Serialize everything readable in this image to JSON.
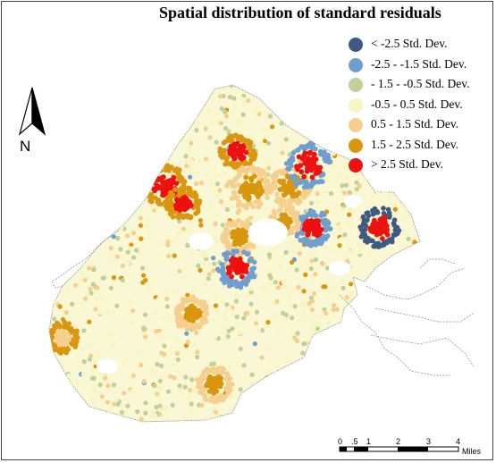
{
  "map": {
    "title": "Spatial distribution of standard residuals",
    "north_label": "N",
    "legend": [
      {
        "label": "< -2.5 Std. Dev.",
        "color": "#3e5a80"
      },
      {
        "label": "-2.5 - -1.5 Std. Dev.",
        "color": "#6f9fcf"
      },
      {
        "label": "- 1.5 - -0.5 Std. Dev.",
        "color": "#bfd09a"
      },
      {
        "label": "-0.5 - 0.5 Std. Dev.",
        "color": "#f7f5c3"
      },
      {
        "label": "0.5 - 1.5 Std. Dev.",
        "color": "#f6cf8e"
      },
      {
        "label": "1.5 - 2.5 Std. Dev.",
        "color": "#d9960f"
      },
      {
        "label": "> 2.5 Std. Dev.",
        "color": "#ee1111"
      }
    ],
    "scale_bar": {
      "ticks": [
        "0",
        ".5",
        "1",
        "2",
        "3",
        "4"
      ],
      "unit": "Miles"
    }
  }
}
